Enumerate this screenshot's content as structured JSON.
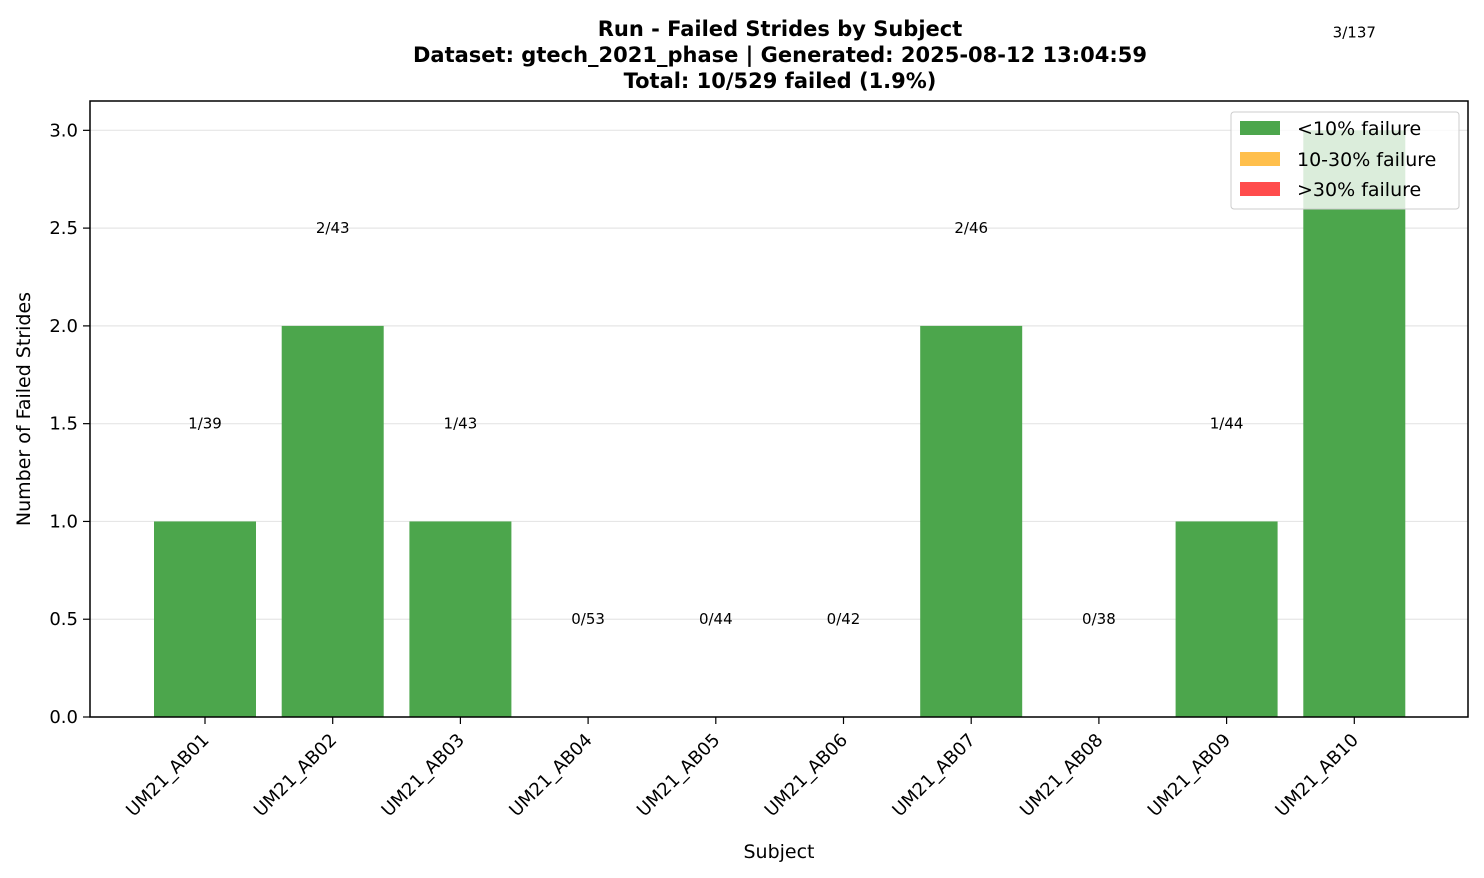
{
  "chart_data": {
    "type": "bar",
    "title_lines": [
      "Run - Failed Strides by Subject",
      "Dataset: gtech_2021_phase | Generated: 2025-08-12 13:04:59",
      "Total: 10/529 failed (1.9%)"
    ],
    "xlabel": "Subject",
    "ylabel": "Number of Failed Strides",
    "categories": [
      "UM21_AB01",
      "UM21_AB02",
      "UM21_AB03",
      "UM21_AB04",
      "UM21_AB05",
      "UM21_AB06",
      "UM21_AB07",
      "UM21_AB08",
      "UM21_AB09",
      "UM21_AB10"
    ],
    "values": [
      1,
      2,
      1,
      0,
      0,
      0,
      2,
      0,
      1,
      3
    ],
    "data_labels": [
      "1/39",
      "2/43",
      "1/43",
      "0/53",
      "0/44",
      "0/42",
      "2/46",
      "0/38",
      "1/44",
      "3/137"
    ],
    "ylim": [
      0,
      3.15
    ],
    "yticks": [
      "0.0",
      "0.5",
      "1.0",
      "1.5",
      "2.0",
      "2.5",
      "3.0"
    ],
    "grid": "y",
    "bar_color": "#4ca64c",
    "legend": {
      "placement": "top-right",
      "entries": [
        {
          "label": "<10% failure",
          "color": "#4ca64c"
        },
        {
          "label": "10-30% failure",
          "color": "#ffbf4c"
        },
        {
          "label": ">30% failure",
          "color": "#ff4c4c"
        }
      ]
    }
  }
}
